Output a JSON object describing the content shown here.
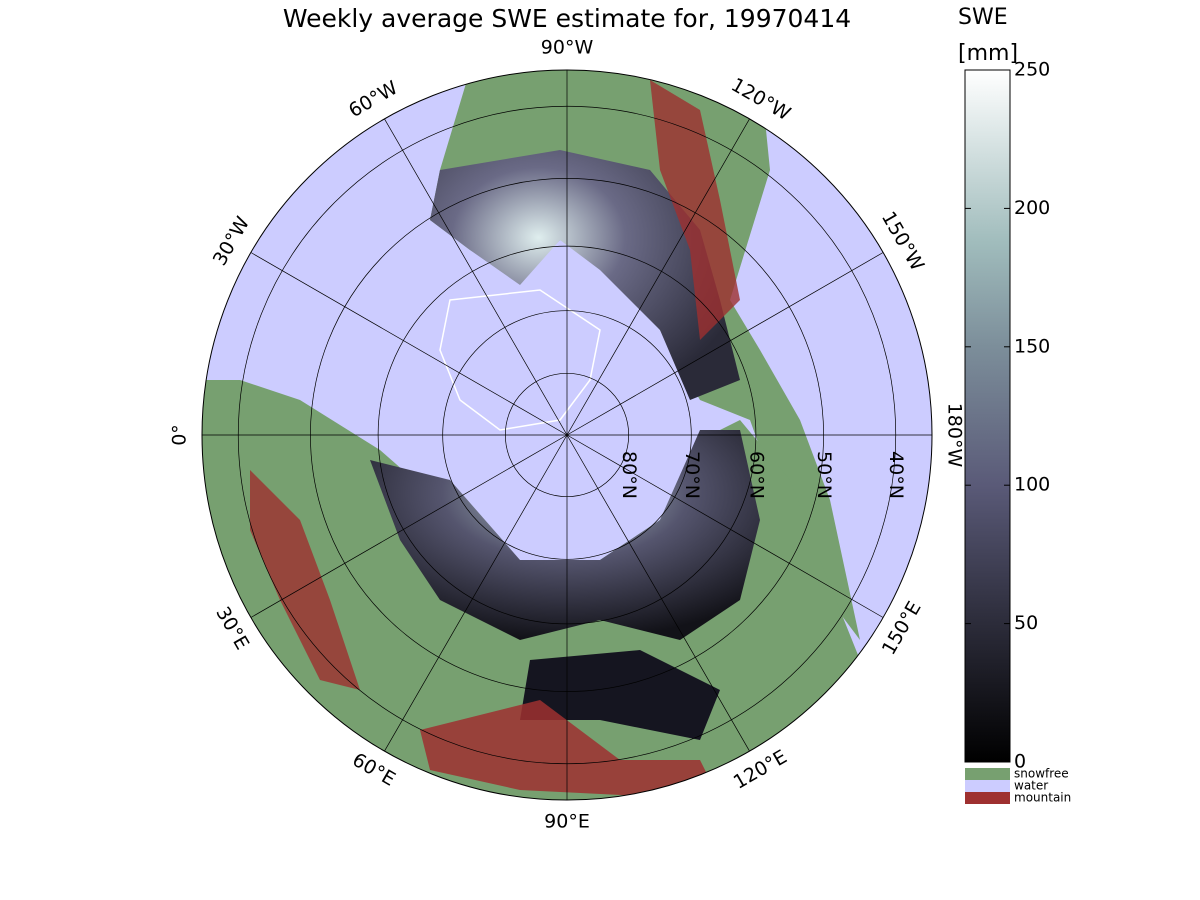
{
  "title": "Weekly average SWE estimate for, 19970414",
  "map": {
    "meridians": [
      {
        "lon": -90,
        "label": "90°W"
      },
      {
        "lon": -120,
        "label": "120°W"
      },
      {
        "lon": -150,
        "label": "150°W"
      },
      {
        "lon": 180,
        "label": "180°W"
      },
      {
        "lon": 150,
        "label": "150°E"
      },
      {
        "lon": 120,
        "label": "120°E"
      },
      {
        "lon": 90,
        "label": "90°E"
      },
      {
        "lon": 60,
        "label": "60°E"
      },
      {
        "lon": 30,
        "label": "30°E"
      },
      {
        "lon": 0,
        "label": "0°"
      },
      {
        "lon": -30,
        "label": "30°W"
      },
      {
        "lon": -60,
        "label": "60°W"
      }
    ],
    "parallels": [
      {
        "lat": 80,
        "label": "80°N"
      },
      {
        "lat": 70,
        "label": "70°N"
      },
      {
        "lat": 60,
        "label": "60°N"
      },
      {
        "lat": 50,
        "label": "50°N"
      },
      {
        "lat": 40,
        "label": "40°N"
      }
    ]
  },
  "colorbar": {
    "title": "SWE",
    "unit": "[mm]",
    "range": [
      0,
      250
    ],
    "ticks": [
      0,
      50,
      100,
      150,
      200,
      250
    ]
  },
  "legend": [
    {
      "label": "snowfree",
      "color": "#77a070"
    },
    {
      "label": "water",
      "color": "#ccccff"
    },
    {
      "label": "mountain",
      "color": "#9e3030"
    }
  ]
}
